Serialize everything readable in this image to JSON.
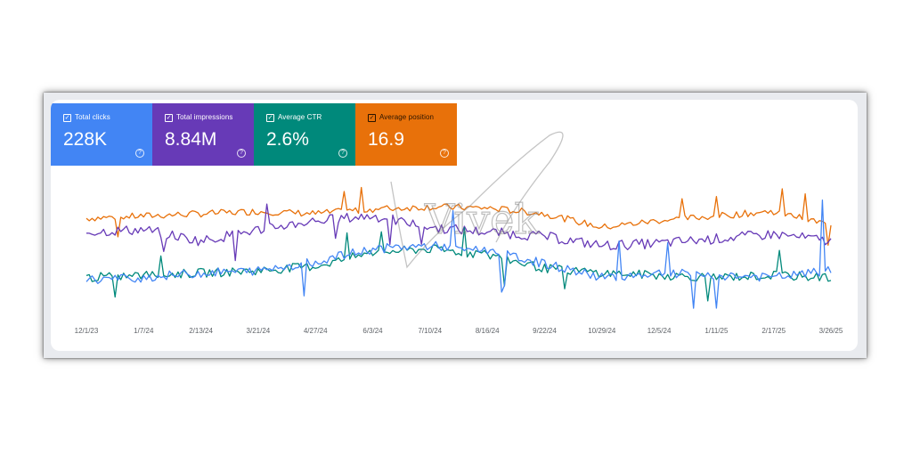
{
  "metrics": [
    {
      "label": "Total clicks",
      "value": "228K",
      "color": "#4285f4"
    },
    {
      "label": "Total impressions",
      "value": "8.84M",
      "color": "#673ab7"
    },
    {
      "label": "Average CTR",
      "value": "2.6%",
      "color": "#00897b"
    },
    {
      "label": "Average position",
      "value": "16.9",
      "color": "#e8710a"
    }
  ],
  "watermark": "Vivek",
  "chart_data": {
    "type": "line",
    "title": "",
    "xlabel": "",
    "ylabel": "",
    "grid": false,
    "categories": [
      "12/1/23",
      "1/7/24",
      "2/13/24",
      "3/21/24",
      "4/27/24",
      "6/3/24",
      "7/10/24",
      "8/16/24",
      "9/22/24",
      "10/29/24",
      "12/5/24",
      "1/11/25",
      "2/17/25",
      "3/26/25"
    ],
    "ylim": [
      0,
      100
    ],
    "series": [
      {
        "name": "Average position",
        "color": "#e8710a",
        "values": [
          82,
          84,
          86,
          88,
          86,
          90,
          92,
          91,
          86,
          74,
          80,
          84,
          88,
          76
        ]
      },
      {
        "name": "Total impressions",
        "color": "#673ab7",
        "values": [
          70,
          72,
          62,
          72,
          80,
          84,
          74,
          70,
          66,
          58,
          60,
          64,
          68,
          62
        ]
      },
      {
        "name": "Average CTR",
        "color": "#00897b",
        "values": [
          30,
          32,
          34,
          36,
          40,
          52,
          55,
          50,
          38,
          34,
          32,
          30,
          32,
          30
        ]
      },
      {
        "name": "Total clicks",
        "color": "#4285f4",
        "values": [
          28,
          30,
          34,
          36,
          44,
          55,
          58,
          54,
          42,
          30,
          34,
          32,
          30,
          36
        ]
      }
    ]
  }
}
